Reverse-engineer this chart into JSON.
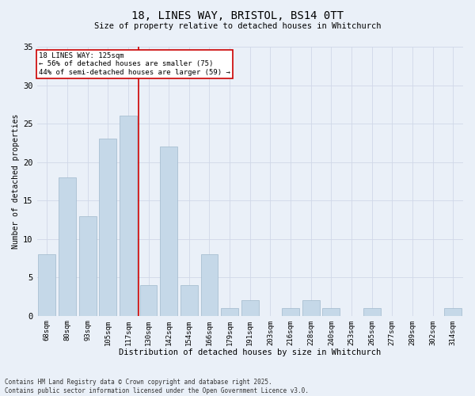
{
  "title": "18, LINES WAY, BRISTOL, BS14 0TT",
  "subtitle": "Size of property relative to detached houses in Whitchurch",
  "xlabel": "Distribution of detached houses by size in Whitchurch",
  "ylabel": "Number of detached properties",
  "bar_labels": [
    "68sqm",
    "80sqm",
    "93sqm",
    "105sqm",
    "117sqm",
    "130sqm",
    "142sqm",
    "154sqm",
    "166sqm",
    "179sqm",
    "191sqm",
    "203sqm",
    "216sqm",
    "228sqm",
    "240sqm",
    "253sqm",
    "265sqm",
    "277sqm",
    "289sqm",
    "302sqm",
    "314sqm"
  ],
  "bar_values": [
    8,
    18,
    13,
    23,
    26,
    4,
    22,
    4,
    8,
    1,
    2,
    0,
    1,
    2,
    1,
    0,
    1,
    0,
    0,
    0,
    1
  ],
  "bar_color": "#c5d8e8",
  "bar_edge_color": "#a0b8cc",
  "vline_x": 4.5,
  "vline_color": "#cc0000",
  "annotation_title": "18 LINES WAY: 125sqm",
  "annotation_line1": "← 56% of detached houses are smaller (75)",
  "annotation_line2": "44% of semi-detached houses are larger (59) →",
  "annotation_box_color": "#ffffff",
  "annotation_box_edge": "#cc0000",
  "ylim": [
    0,
    35
  ],
  "yticks": [
    0,
    5,
    10,
    15,
    20,
    25,
    30,
    35
  ],
  "grid_color": "#d0d8e8",
  "bg_color": "#eaf0f8",
  "fig_bg_color": "#eaf0f8",
  "footnote1": "Contains HM Land Registry data © Crown copyright and database right 2025.",
  "footnote2": "Contains public sector information licensed under the Open Government Licence v3.0."
}
